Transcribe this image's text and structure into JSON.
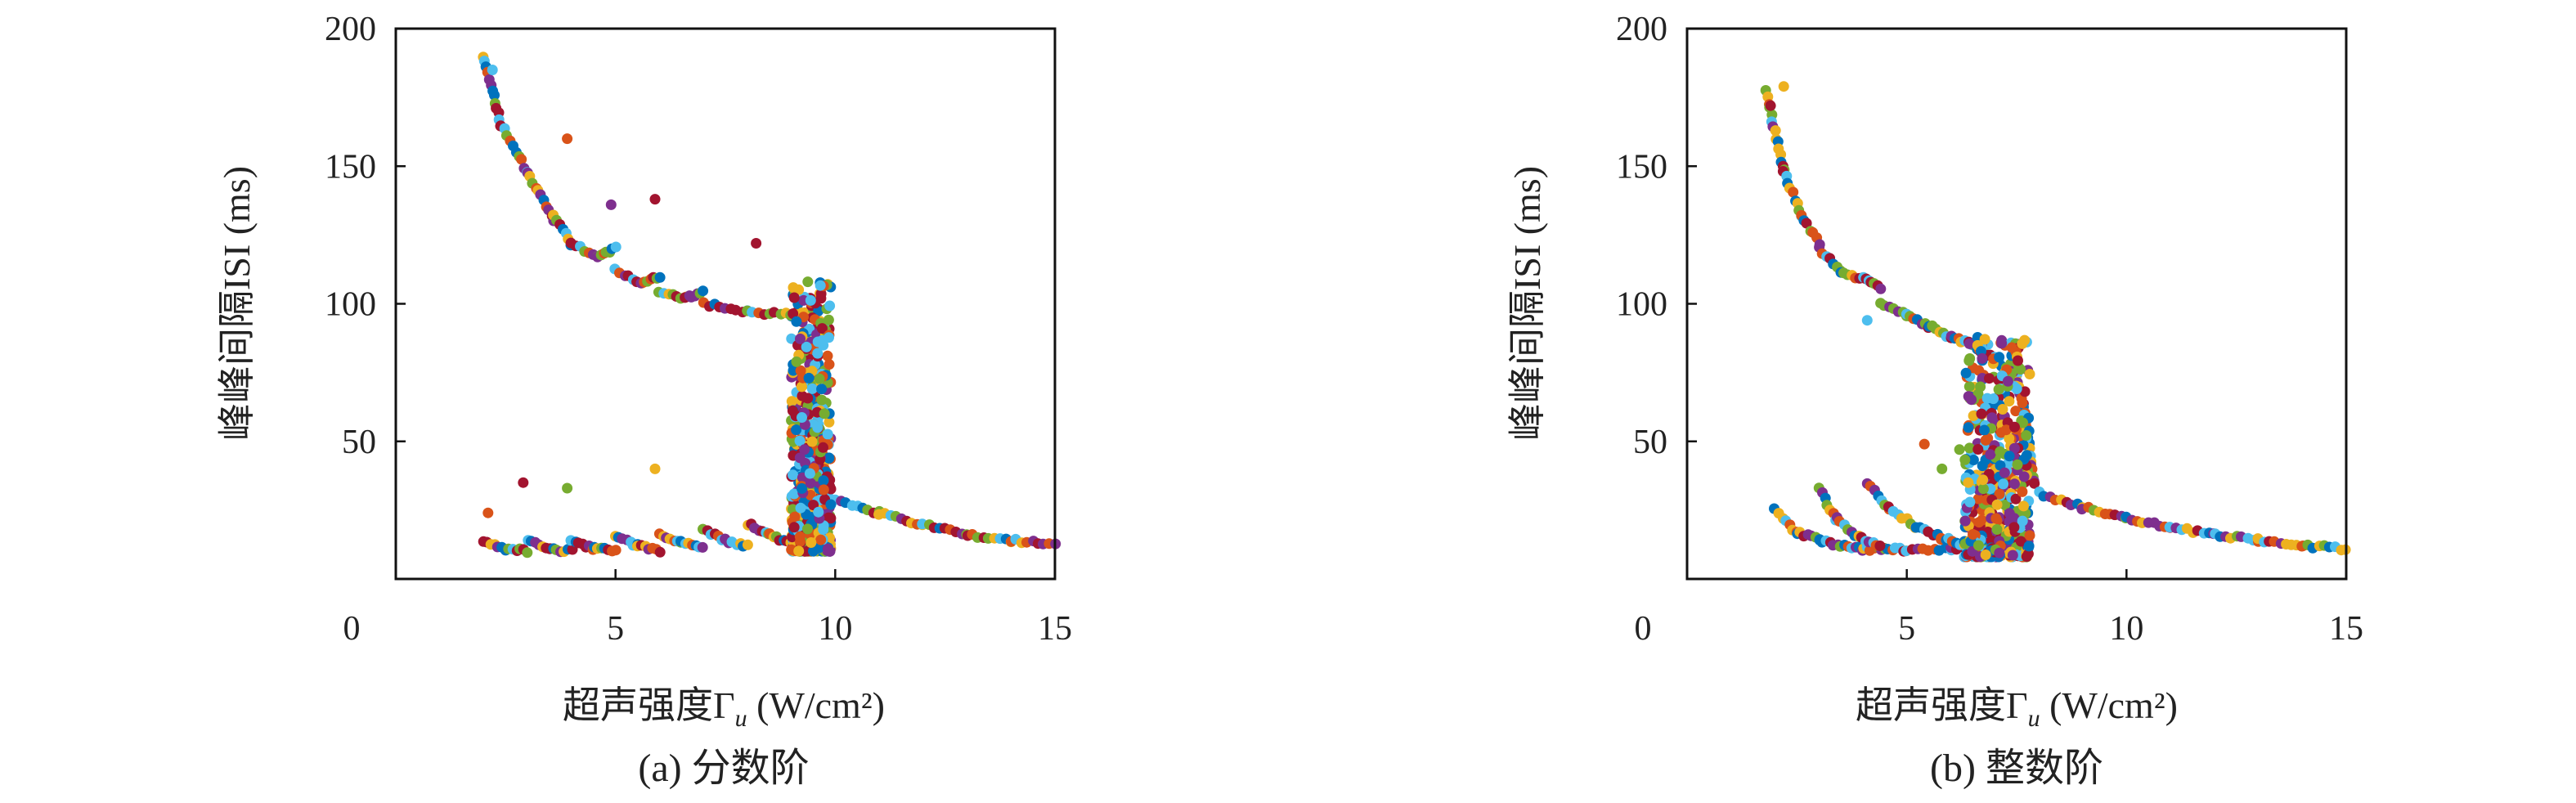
{
  "chart_data": [
    {
      "type": "scatter",
      "caption": "(a) 分数阶",
      "xlabel": "超声强度Γ",
      "xlabel_subscript": "u",
      "xlabel_unit": "(W/cm²)",
      "ylabel": "峰峰间隔ISI (ms)",
      "xlim": [
        0,
        15
      ],
      "ylim": [
        0,
        200
      ],
      "xticks": [
        0,
        5,
        10,
        15
      ],
      "yticks": [
        50,
        100,
        150,
        200
      ],
      "grid": false,
      "legend": "none",
      "branches": [
        {
          "segments": [
            [
              2.0,
              190
            ],
            [
              2.4,
              165
            ],
            [
              3.0,
              148
            ],
            [
              3.6,
              130
            ]
          ]
        },
        {
          "segments": [
            [
              3.6,
              132
            ],
            [
              4.0,
              122
            ],
            [
              4.6,
              117
            ],
            [
              5.0,
              120
            ]
          ]
        },
        {
          "segments": [
            [
              5.0,
              112
            ],
            [
              5.6,
              108
            ],
            [
              6.0,
              110
            ]
          ]
        },
        {
          "segments": [
            [
              6.0,
              104
            ],
            [
              6.6,
              102
            ],
            [
              7.0,
              104
            ]
          ]
        },
        {
          "segments": [
            [
              7.0,
              100
            ],
            [
              8.0,
              97
            ],
            [
              9.0,
              96
            ],
            [
              9.6,
              98
            ]
          ]
        },
        {
          "segments": [
            [
              9.3,
              90
            ],
            [
              9.6,
              60
            ],
            [
              9.8,
              30
            ]
          ]
        },
        {
          "segments": [
            [
              2.0,
              14
            ],
            [
              2.5,
              11
            ],
            [
              3.0,
              10
            ]
          ]
        },
        {
          "segments": [
            [
              3.0,
              14
            ],
            [
              3.5,
              11
            ],
            [
              4.0,
              10
            ]
          ]
        },
        {
          "segments": [
            [
              4.0,
              14
            ],
            [
              4.5,
              11
            ],
            [
              5.0,
              10
            ]
          ]
        },
        {
          "segments": [
            [
              5.0,
              15
            ],
            [
              5.5,
              12
            ],
            [
              6.0,
              10
            ]
          ]
        },
        {
          "segments": [
            [
              6.0,
              16
            ],
            [
              6.5,
              13
            ],
            [
              7.0,
              11
            ]
          ]
        },
        {
          "segments": [
            [
              7.0,
              18
            ],
            [
              7.5,
              14
            ],
            [
              8.0,
              12
            ]
          ]
        },
        {
          "segments": [
            [
              8.0,
              20
            ],
            [
              8.5,
              16
            ],
            [
              9.0,
              13
            ]
          ]
        },
        {
          "segments": [
            [
              9.0,
              25
            ],
            [
              9.5,
              18
            ],
            [
              9.8,
              15
            ]
          ]
        },
        {
          "segments": [
            [
              10.0,
              29
            ],
            [
              11.0,
              24
            ],
            [
              12.0,
              20
            ],
            [
              13.0,
              16
            ],
            [
              14.0,
              14
            ],
            [
              15.0,
              12.5
            ]
          ]
        }
      ],
      "outliers": [
        [
          2.2,
          185
        ],
        [
          3.9,
          160
        ],
        [
          4.9,
          136
        ],
        [
          5.9,
          138
        ],
        [
          8.2,
          122
        ],
        [
          2.1,
          24
        ],
        [
          2.9,
          35
        ],
        [
          3.9,
          33
        ],
        [
          5.9,
          40
        ],
        [
          9.6,
          82
        ],
        [
          9.4,
          73
        ],
        [
          9.6,
          55
        ],
        [
          9.3,
          47
        ],
        [
          9.2,
          44
        ]
      ],
      "dense_region": {
        "x": [
          9.0,
          9.9
        ],
        "y": [
          10,
          108
        ]
      }
    },
    {
      "type": "scatter",
      "caption": "(b) 整数阶",
      "xlabel": "超声强度Γ",
      "xlabel_subscript": "u",
      "xlabel_unit": "(W/cm²)",
      "ylabel": "峰峰间隔ISI (ms)",
      "xlim": [
        0,
        15
      ],
      "ylim": [
        0,
        200
      ],
      "xticks": [
        0,
        5,
        10,
        15
      ],
      "yticks": [
        50,
        100,
        150,
        200
      ],
      "grid": false,
      "legend": "none",
      "branches": [
        {
          "segments": [
            [
              1.8,
              177
            ],
            [
              2.2,
              148
            ],
            [
              2.6,
              132
            ],
            [
              3.0,
              122
            ]
          ]
        },
        {
          "segments": [
            [
              3.0,
              120
            ],
            [
              3.5,
              112
            ],
            [
              4.0,
              109
            ],
            [
              4.4,
              106
            ]
          ]
        },
        {
          "segments": [
            [
              4.4,
              100
            ],
            [
              5.0,
              96
            ],
            [
              5.5,
              92
            ],
            [
              6.0,
              88
            ],
            [
              6.5,
              85
            ],
            [
              7.0,
              80
            ],
            [
              7.5,
              74
            ]
          ]
        },
        {
          "segments": [
            [
              7.5,
              74
            ],
            [
              7.7,
              60
            ],
            [
              7.8,
              45
            ],
            [
              7.9,
              34
            ]
          ]
        },
        {
          "segments": [
            [
              2.0,
              25
            ],
            [
              2.5,
              17
            ],
            [
              3.0,
              14
            ],
            [
              3.5,
              12
            ],
            [
              4.0,
              11
            ],
            [
              4.5,
              11
            ],
            [
              5.0,
              10.5
            ],
            [
              6.0,
              11
            ],
            [
              7.0,
              12
            ]
          ]
        },
        {
          "segments": [
            [
              3.0,
              33
            ],
            [
              3.4,
              22
            ],
            [
              3.9,
              15
            ],
            [
              4.4,
              12
            ]
          ]
        },
        {
          "segments": [
            [
              4.1,
              35
            ],
            [
              4.6,
              26
            ],
            [
              5.2,
              19
            ],
            [
              5.8,
              15
            ],
            [
              6.3,
              12.5
            ]
          ]
        },
        {
          "segments": [
            [
              8.0,
              31
            ],
            [
              9.0,
              26
            ],
            [
              10.0,
              22
            ],
            [
              11.0,
              19
            ],
            [
              12.0,
              16
            ],
            [
              13.0,
              14
            ],
            [
              14.0,
              12
            ],
            [
              15.0,
              11
            ]
          ]
        }
      ],
      "outliers": [
        [
          1.9,
          172
        ],
        [
          2.2,
          179
        ],
        [
          4.1,
          94
        ],
        [
          5.4,
          49
        ],
        [
          5.8,
          40
        ],
        [
          6.2,
          47
        ],
        [
          6.7,
          60
        ],
        [
          6.4,
          35
        ]
      ],
      "dense_region": {
        "x": [
          6.3,
          7.8
        ],
        "y": [
          8,
          88
        ]
      }
    }
  ],
  "palette": [
    "#0072BD",
    "#D95319",
    "#EDB120",
    "#7E2F8E",
    "#77AC30",
    "#4DBEEE",
    "#A2142F"
  ]
}
